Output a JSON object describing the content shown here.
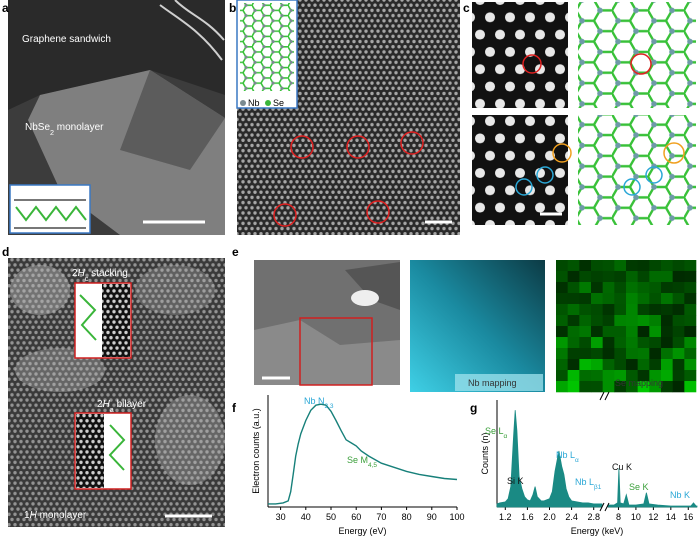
{
  "panel_letters": [
    "a",
    "b",
    "c",
    "d",
    "e",
    "f",
    "g"
  ],
  "panel_a": {
    "graphene": "Graphene sandwich",
    "monolayer": {
      "main": "NbSe",
      "sub": "2",
      "rest": " monolayer"
    }
  },
  "panel_b": {
    "legend": [
      "Nb",
      "Se"
    ]
  },
  "panel_d": {
    "stacking": {
      "main": "2",
      "italic": "H",
      "sub": "c",
      "rest": " stacking"
    },
    "bilayer": {
      "main": "2",
      "italic": "H",
      "sub": "a",
      "rest": " bilayer"
    },
    "monolayer": {
      "main": "1",
      "italic": "H",
      "rest": " monolayer"
    }
  },
  "panel_e": {
    "mappings": [
      "Nb mapping",
      "Se mapping"
    ]
  },
  "chart_data": [
    {
      "type": "line",
      "x_label": "Energy (eV)",
      "y_label": "Electron counts (a.u.)",
      "color": "#17807a",
      "x": [
        25,
        28,
        31,
        33,
        34,
        35,
        36,
        37,
        38,
        40,
        42,
        44,
        46,
        48,
        50,
        52,
        54,
        56,
        58,
        60,
        62,
        65,
        70,
        75,
        80,
        85,
        90,
        95,
        100
      ],
      "values": [
        0.03,
        0.03,
        0.04,
        0.06,
        0.15,
        0.32,
        0.5,
        0.62,
        0.72,
        0.85,
        0.95,
        1.0,
        1.01,
        1.0,
        0.94,
        0.85,
        0.75,
        0.66,
        0.63,
        0.6,
        0.55,
        0.5,
        0.43,
        0.39,
        0.35,
        0.32,
        0.3,
        0.28,
        0.27
      ],
      "xlim": [
        25,
        100
      ],
      "xticks": [
        30,
        40,
        50,
        60,
        70,
        80,
        90,
        100
      ],
      "ylim": [
        0,
        1.1
      ],
      "annotations": [
        {
          "main": "Nb N",
          "sub": "2,3",
          "color": "#2aa7d6"
        },
        {
          "main": "Se M",
          "sub": "4,5",
          "color": "#3a9f3a"
        }
      ]
    },
    {
      "type": "broken-area",
      "x_label": "Energy (keV)",
      "y_label": "Counts (n)",
      "color": "#1a8a84",
      "ylim": [
        0,
        1.05
      ],
      "segments": [
        {
          "xlim": [
            1.05,
            2.95
          ],
          "xticks": [
            1.2,
            1.6,
            {
              "value": 2.0,
              "label": "2.0"
            },
            2.4,
            2.8
          ],
          "x": [
            1.05,
            1.1,
            1.2,
            1.25,
            1.3,
            1.35,
            1.38,
            1.41,
            1.45,
            1.5,
            1.55,
            1.6,
            1.65,
            1.7,
            1.74,
            1.78,
            1.85,
            1.9,
            2.0,
            2.05,
            2.1,
            2.17,
            2.22,
            2.26,
            2.3,
            2.35,
            2.4,
            2.5,
            2.6,
            2.7,
            2.8,
            2.95
          ],
          "values": [
            0.03,
            0.04,
            0.05,
            0.08,
            0.2,
            0.7,
            0.95,
            0.75,
            0.3,
            0.18,
            0.1,
            0.07,
            0.06,
            0.12,
            0.2,
            0.1,
            0.06,
            0.06,
            0.08,
            0.15,
            0.35,
            0.55,
            0.4,
            0.32,
            0.18,
            0.1,
            0.06,
            0.05,
            0.04,
            0.04,
            0.03,
            0.03
          ]
        },
        {
          "xlim": [
            6.8,
            17
          ],
          "xticks": [
            8,
            10,
            12,
            14,
            16
          ],
          "x": [
            6.8,
            7.5,
            7.9,
            8.05,
            8.2,
            8.6,
            8.9,
            9.2,
            10,
            10.9,
            11.2,
            11.5,
            12.5,
            14,
            16.3,
            16.6,
            16.9,
            17
          ],
          "values": [
            0.02,
            0.02,
            0.04,
            0.38,
            0.04,
            0.03,
            0.12,
            0.02,
            0.02,
            0.03,
            0.14,
            0.03,
            0.02,
            0.01,
            0.01,
            0.04,
            0.01,
            0.01
          ]
        }
      ],
      "annotations": [
        {
          "main": "Se L",
          "sub": "α",
          "color": "#3a9f3a"
        },
        {
          "main": "Si K",
          "color": "#111111"
        },
        {
          "main": "Nb L",
          "sub": "α",
          "color": "#2aa7d6"
        },
        {
          "main": "Nb L",
          "sub": "β1",
          "color": "#2aa7d6"
        },
        {
          "main": "Cu K",
          "color": "#111111"
        },
        {
          "main": "Se K",
          "color": "#3a9f3a"
        },
        {
          "main": "Nb K",
          "color": "#2aa7d6"
        }
      ]
    }
  ]
}
